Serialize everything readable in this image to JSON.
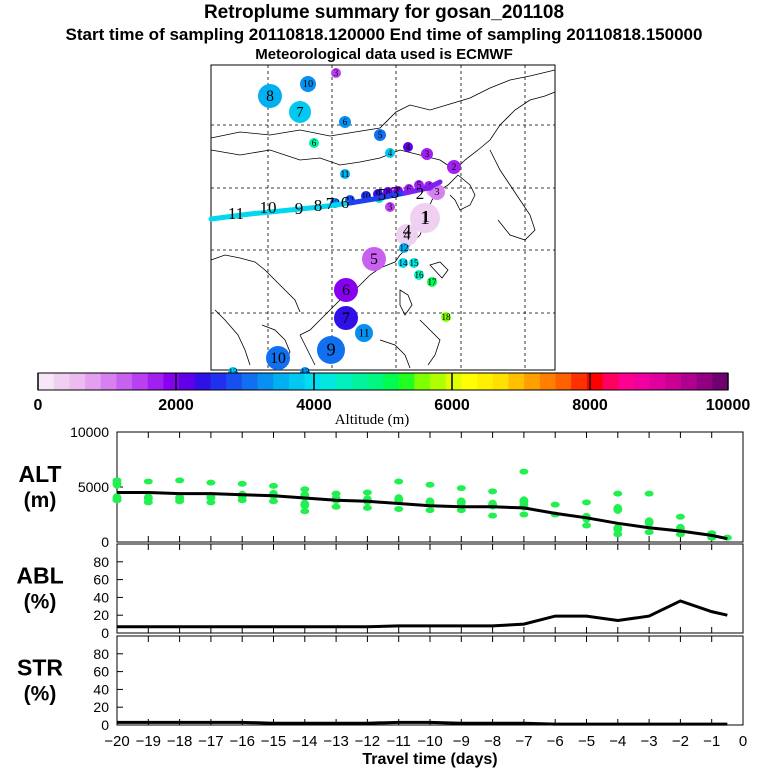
{
  "header": {
    "title": "Retroplume summary for gosan_201108",
    "subtitle": "Start time of sampling 20110818.120000     End time of sampling 20110818.150000",
    "met_line": "Meteorological data used is ECMWF"
  },
  "colorbar": {
    "tick_labels": [
      "0",
      "2000",
      "4000",
      "6000",
      "8000",
      "10000"
    ],
    "label": "Altitude (m)",
    "min": 0,
    "max": 10000,
    "colors": [
      "#f6e6f6",
      "#f0d0f0",
      "#ecbcf0",
      "#e4a0f0",
      "#d880f0",
      "#c860f0",
      "#b840f0",
      "#a020f0",
      "#8800f0",
      "#6000e8",
      "#3010e8",
      "#2030f0",
      "#1850f0",
      "#1070f0",
      "#0890f0",
      "#00b0f0",
      "#00c8f0",
      "#00dcf0",
      "#00e8e0",
      "#00f0c0",
      "#00f4a0",
      "#00f880",
      "#00fc50",
      "#20ff20",
      "#80ff00",
      "#b0ff00",
      "#e0ff00",
      "#ffff00",
      "#fff000",
      "#ffe000",
      "#ffc000",
      "#ffa000",
      "#ff8000",
      "#ff6000",
      "#ff3000",
      "#ff0000",
      "#ff0060",
      "#ff0090",
      "#f000a0",
      "#e000a0",
      "#cc0090",
      "#b00090",
      "#900080",
      "#700070"
    ]
  },
  "map": {
    "plume_points": [
      {
        "label": "1",
        "alt": 300,
        "size": 15
      },
      {
        "label": "2",
        "alt": 700,
        "size": 7
      },
      {
        "label": "3",
        "alt": 1000,
        "size": 8
      },
      {
        "label": "4",
        "alt": 400,
        "size": 11
      },
      {
        "label": "5",
        "alt": 1300,
        "size": 12
      },
      {
        "label": "6",
        "alt": 1900,
        "size": 12
      },
      {
        "label": "7",
        "alt": 2400,
        "size": 12
      },
      {
        "label": "8",
        "alt": 2700,
        "size": 8
      },
      {
        "label": "9",
        "alt": 3000,
        "size": 14
      },
      {
        "label": "10",
        "alt": 3100,
        "size": 12
      },
      {
        "label": "11",
        "alt": 3200,
        "size": 9
      },
      {
        "label": "12",
        "alt": 3600,
        "size": 5
      },
      {
        "label": "13",
        "alt": 3800,
        "size": 5
      },
      {
        "label": "14",
        "alt": 4000,
        "size": 5
      },
      {
        "label": "15",
        "alt": 4200,
        "size": 5
      },
      {
        "label": "16",
        "alt": 4500,
        "size": 5
      },
      {
        "label": "17",
        "alt": 5200,
        "size": 5
      },
      {
        "label": "18",
        "alt": 5600,
        "size": 5
      },
      {
        "label": "2",
        "alt": 1600,
        "size": 7
      },
      {
        "label": "3",
        "alt": 1800,
        "size": 6
      },
      {
        "label": "4",
        "alt": 2200,
        "size": 5
      },
      {
        "label": "5",
        "alt": 3000,
        "size": 6
      },
      {
        "label": "6",
        "alt": 3400,
        "size": 6
      },
      {
        "label": "7",
        "alt": 3700,
        "size": 11
      },
      {
        "label": "8",
        "alt": 3500,
        "size": 12
      },
      {
        "label": "10",
        "alt": 3400,
        "size": 8
      },
      {
        "label": "3",
        "alt": 1500,
        "size": 5
      },
      {
        "label": "4",
        "alt": 3800,
        "size": 5
      },
      {
        "label": "5",
        "alt": 4600,
        "size": 5
      },
      {
        "label": "6",
        "alt": 4700,
        "size": 5
      },
      {
        "label": "11",
        "alt": 3600,
        "size": 5
      },
      {
        "label": "3",
        "alt": 1500,
        "size": 5
      },
      {
        "label": "4",
        "alt": 1600,
        "size": 5
      },
      {
        "label": "5",
        "alt": 1700,
        "size": 5
      },
      {
        "label": "6",
        "alt": 1800,
        "size": 5
      },
      {
        "label": "7",
        "alt": 1900,
        "size": 5
      },
      {
        "label": "8",
        "alt": 2100,
        "size": 5
      },
      {
        "label": "9",
        "alt": 2300,
        "size": 5
      },
      {
        "label": "10",
        "alt": 2600,
        "size": 5
      },
      {
        "label": "11",
        "alt": 2900,
        "size": 5
      },
      {
        "label": "12",
        "alt": 3100,
        "size": 5
      },
      {
        "label": "13",
        "alt": 3300,
        "size": 5
      }
    ],
    "centroid_labels": [
      "1",
      "2",
      "3",
      "4",
      "5",
      "6",
      "7",
      "8",
      "9",
      "10",
      "11"
    ]
  },
  "chart_data": [
    {
      "type": "scatter+line",
      "title": "ALT (m)",
      "ylabel_line1": "ALT",
      "ylabel_line2": "(m)",
      "ylim": [
        0,
        10000
      ],
      "yticks": [
        "0",
        "5000",
        "10000"
      ],
      "median": {
        "x": [
          -20,
          -19,
          -18,
          -17,
          -16,
          -15,
          -14,
          -13,
          -12,
          -11,
          -10,
          -9,
          -8,
          -7,
          -6,
          -5,
          -4,
          -3,
          -2,
          -1,
          -0.5
        ],
        "y": [
          4500,
          4500,
          4400,
          4400,
          4300,
          4200,
          4000,
          3800,
          3700,
          3500,
          3300,
          3200,
          3200,
          3100,
          2600,
          2200,
          1700,
          1300,
          1000,
          600,
          300
        ]
      },
      "scatter_x": [
        -20,
        -19,
        -18,
        -17,
        -16,
        -15,
        -14,
        -13,
        -12,
        -11,
        -10,
        -9,
        -8,
        -7,
        -6,
        -5,
        -4,
        -3,
        -2,
        -1,
        -0.5
      ],
      "scatter_y": [
        [
          5600,
          5300,
          4000,
          3800
        ],
        [
          5500,
          4000,
          3600
        ],
        [
          5600,
          4000,
          3700
        ],
        [
          5400,
          4100,
          3600
        ],
        [
          5300,
          4200,
          3800
        ],
        [
          5100,
          4300,
          3700
        ],
        [
          4800,
          4200,
          3400,
          2800
        ],
        [
          4400,
          3900,
          3200
        ],
        [
          4500,
          3800,
          3100
        ],
        [
          5500,
          3900,
          3000
        ],
        [
          5200,
          3600,
          2900
        ],
        [
          4900,
          3600,
          2900
        ],
        [
          4600,
          3400,
          2400
        ],
        [
          6400,
          3700,
          3300,
          2500
        ],
        [
          3400,
          2500
        ],
        [
          3600,
          2200,
          1500
        ],
        [
          4400,
          3000,
          1200,
          700
        ],
        [
          4400,
          1800,
          900
        ],
        [
          2300,
          1200,
          700
        ],
        [
          800,
          400
        ],
        [
          400
        ]
      ]
    },
    {
      "type": "line",
      "title": "ABL (%)",
      "ylabel_line1": "ABL",
      "ylabel_line2": "(%)",
      "ylim": [
        0,
        100
      ],
      "yticks": [
        "0",
        "20",
        "40",
        "60",
        "80"
      ],
      "x": [
        -20,
        -19,
        -18,
        -17,
        -16,
        -15,
        -14,
        -13,
        -12,
        -11,
        -10,
        -9,
        -8,
        -7,
        -6,
        -5,
        -4,
        -3,
        -2,
        -1,
        -0.5
      ],
      "values": [
        7,
        7,
        7,
        7,
        7,
        7,
        7,
        7,
        7,
        8,
        8,
        8,
        8,
        10,
        19,
        19,
        14,
        19,
        36,
        24,
        20
      ]
    },
    {
      "type": "line",
      "title": "STR (%)",
      "ylabel_line1": "STR",
      "ylabel_line2": "(%)",
      "ylim": [
        0,
        100
      ],
      "yticks": [
        "0",
        "20",
        "40",
        "60",
        "80"
      ],
      "x": [
        -20,
        -19,
        -18,
        -17,
        -16,
        -15,
        -14,
        -13,
        -12,
        -11,
        -10,
        -9,
        -8,
        -7,
        -6,
        -5,
        -4,
        -3,
        -2,
        -1,
        -0.5
      ],
      "values": [
        3,
        3,
        3,
        3,
        3,
        2,
        2,
        2,
        2,
        3,
        3,
        2,
        2,
        2,
        1,
        1,
        1,
        1,
        1,
        1,
        1
      ]
    }
  ],
  "xaxis": {
    "label": "Travel time (days)",
    "ticks": [
      "−20",
      "−19",
      "−18",
      "−17",
      "−16",
      "−15",
      "−14",
      "−13",
      "−12",
      "−11",
      "−10",
      "−9",
      "−8",
      "−7",
      "−6",
      "−5",
      "−4",
      "−3",
      "−2",
      "−1",
      "0"
    ]
  }
}
